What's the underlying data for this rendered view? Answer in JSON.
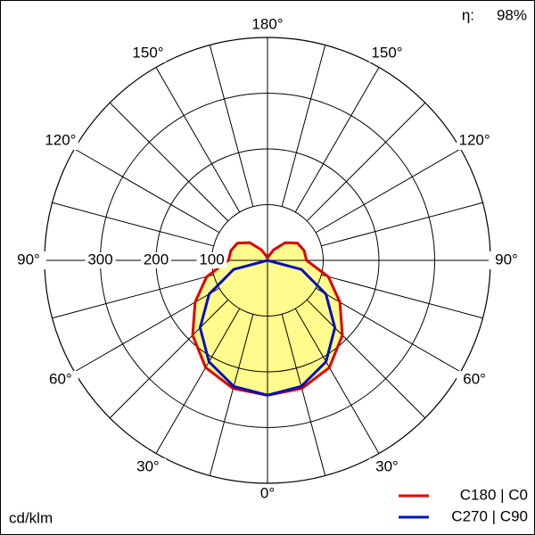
{
  "chart_data": {
    "type": "polar-intensity",
    "unit_label": "cd/klm",
    "efficiency_label": "η:",
    "efficiency_value": "98%",
    "angles": [
      0,
      15,
      30,
      45,
      60,
      75,
      90,
      105,
      120,
      135,
      150,
      165,
      180
    ],
    "series": [
      {
        "name": "C180 | C0",
        "color": "#e00000",
        "values": [
          242,
          238,
          222,
          190,
          150,
          113,
          70,
          68,
          62,
          45,
          22,
          8,
          4
        ]
      },
      {
        "name": "C270 | C90",
        "color": "#0010c0",
        "values": [
          242,
          234,
          210,
          171,
          121,
          63,
          0,
          0,
          0,
          0,
          0,
          0,
          0
        ]
      }
    ],
    "fill_color": "#fffb8c",
    "rlim": [
      0,
      400
    ],
    "rticks": [
      100,
      200,
      300
    ],
    "angle_ticks": [
      {
        "value": 0,
        "label": "0°"
      },
      {
        "value": 30,
        "label": "30°"
      },
      {
        "value": 60,
        "label": "60°"
      },
      {
        "value": 90,
        "label": "90°"
      },
      {
        "value": 120,
        "label": "120°"
      },
      {
        "value": 150,
        "label": "150°"
      },
      {
        "value": 180,
        "label": "180°"
      }
    ],
    "angle_grid_step": 15
  }
}
